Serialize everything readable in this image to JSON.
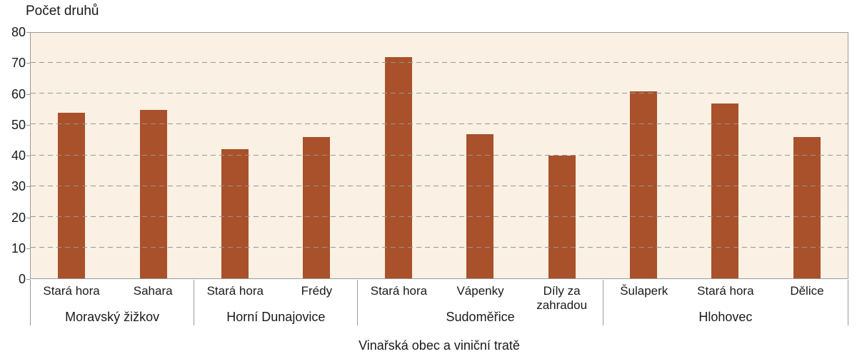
{
  "chart_data": {
    "type": "bar",
    "title": "Počet druhů",
    "xlabel": "Vinařská obec a viniční tratě",
    "ylim": [
      0,
      80
    ],
    "y_ticks": [
      0,
      10,
      20,
      30,
      40,
      50,
      60,
      70,
      80
    ],
    "grid": "horizontal-dashed",
    "legend": "none",
    "bar_color": "#a8512a",
    "plot_bg": "#faf0e3",
    "grid_color": "#979797",
    "axis_color": "#9a9a9a",
    "text_color": "#1a1a1a",
    "categories": [
      "Stará hora",
      "Sahara",
      "Stará hora",
      "Frédy",
      "Stará hora",
      "Vápenky",
      "Díly za zahradou",
      "Šulaperk",
      "Stará hora",
      "Dělice"
    ],
    "values": [
      54,
      55,
      42,
      46,
      72,
      47,
      40,
      61,
      57,
      46
    ],
    "groups": [
      {
        "village": "Moravský žižkov",
        "tracks": [
          {
            "label": "Stará hora",
            "value": 54
          },
          {
            "label": "Sahara",
            "value": 55
          }
        ]
      },
      {
        "village": "Horní Dunajovice",
        "tracks": [
          {
            "label": "Stará hora",
            "value": 42
          },
          {
            "label": "Frédy",
            "value": 46
          }
        ]
      },
      {
        "village": "Sudoměřice",
        "tracks": [
          {
            "label": "Stará hora",
            "value": 72
          },
          {
            "label": "Vápenky",
            "value": 47
          },
          {
            "label": "Díly za zahradou",
            "value": 40
          }
        ]
      },
      {
        "village": "Hlohovec",
        "tracks": [
          {
            "label": "Šulaperk",
            "value": 61
          },
          {
            "label": "Stará hora",
            "value": 57
          },
          {
            "label": "Dělice",
            "value": 46
          }
        ]
      }
    ]
  }
}
